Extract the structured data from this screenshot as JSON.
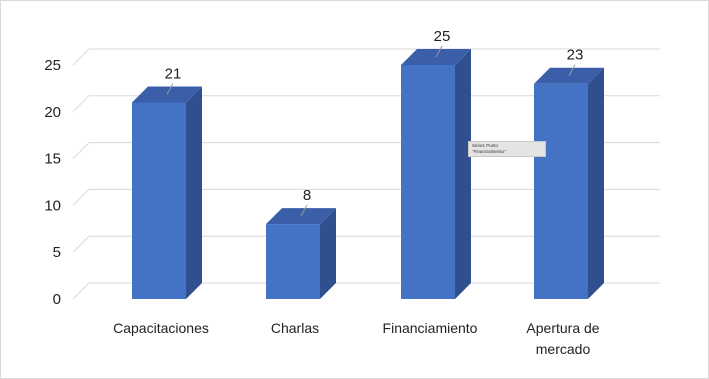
{
  "chart_data": {
    "type": "bar",
    "style": "3d-column",
    "categories": [
      "Capacitaciones",
      "Charlas",
      "Financiamiento",
      "Apertura de mercado"
    ],
    "values": [
      21,
      8,
      25,
      23
    ],
    "data_labels": [
      "21",
      "8",
      "25",
      "23"
    ],
    "title": "",
    "xlabel": "",
    "ylabel": "",
    "ylim": [
      0,
      25
    ],
    "yticks": [
      "0",
      "5",
      "10",
      "15",
      "20",
      "25"
    ],
    "grid": true,
    "legend": "none",
    "colors": {
      "bar_front": "#4472c4",
      "bar_side": "#2f4f8f",
      "bar_top": "#3a5ea8",
      "grid": "#d9d9d9",
      "leader_line": "#9a9a9a"
    }
  },
  "tooltip": {
    "line1": "Serie1 Punto",
    "line2": "\"Financiamiento\""
  }
}
